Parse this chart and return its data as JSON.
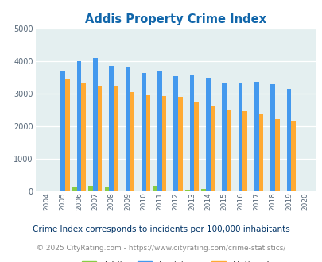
{
  "title": "Addis Property Crime Index",
  "years": [
    2004,
    2005,
    2006,
    2007,
    2008,
    2009,
    2010,
    2011,
    2012,
    2013,
    2014,
    2015,
    2016,
    2017,
    2018,
    2019,
    2020
  ],
  "addis": [
    0,
    20,
    110,
    160,
    120,
    20,
    10,
    170,
    20,
    50,
    70,
    10,
    0,
    0,
    0,
    20,
    0
  ],
  "louisiana": [
    0,
    3700,
    4000,
    4100,
    3850,
    3800,
    3650,
    3700,
    3550,
    3600,
    3500,
    3350,
    3330,
    3380,
    3290,
    3150,
    0
  ],
  "national": [
    0,
    3450,
    3350,
    3250,
    3250,
    3050,
    2950,
    2940,
    2900,
    2750,
    2620,
    2500,
    2470,
    2380,
    2220,
    2150,
    0
  ],
  "addis_color": "#88cc44",
  "louisiana_color": "#4499ee",
  "national_color": "#ffaa33",
  "bg_color": "#e4eff0",
  "title_color": "#1166aa",
  "footnote1_color": "#003366",
  "footnote2_color": "#888888",
  "footnote2_link_color": "#3366cc",
  "ylim": [
    0,
    5000
  ],
  "yticks": [
    0,
    1000,
    2000,
    3000,
    4000,
    5000
  ],
  "footnote1": "Crime Index corresponds to incidents per 100,000 inhabitants",
  "footnote2": "© 2025 CityRating.com - https://www.cityrating.com/crime-statistics/",
  "bar_width": 0.28
}
